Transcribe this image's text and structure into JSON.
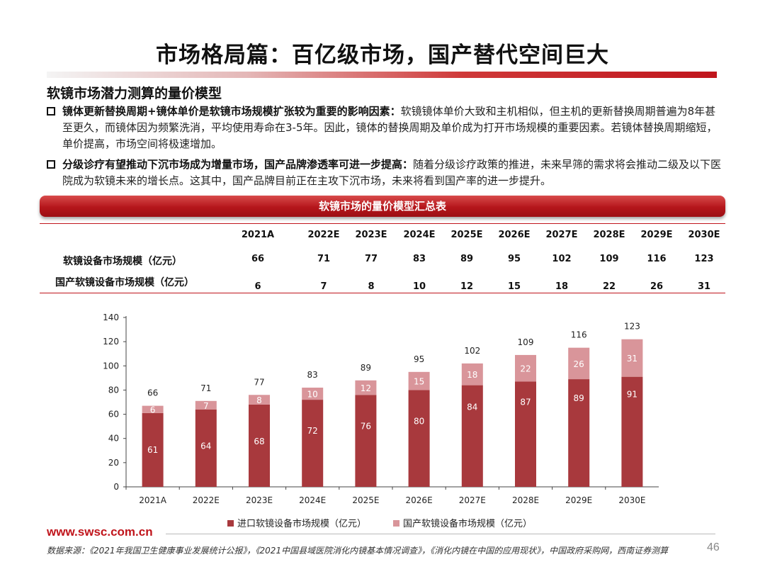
{
  "page": {
    "title": "市场格局篇：百亿级市场，国产替代空间巨大",
    "subheading": "软镜市场潜力测算的量价模型"
  },
  "bullets": [
    {
      "bold": "镜体更新替换周期+镜体单价是软镜市场规模扩张较为重要的影响因素：",
      "text": "软镜镜体单价大致和主机相似，但主机的更新替换周期普遍为8年甚至更久，而镜体因为频繁洗消，平均使用寿命在3-5年。因此，镜体的替换周期及单价成为打开市场规模的重要因素。若镜体替换周期缩短，单价提高，市场空间将极速增加。"
    },
    {
      "bold": "分级诊疗有望推动下沉市场成为增量市场，国产品牌渗透率可进一步提高：",
      "text": "随着分级诊疗政策的推进，未来早筛的需求将会推动二级及以下医院成为软镜未来的增长点。这其中，国产品牌目前正在主攻下沉市场，未来将看到国产率的进一步提升。"
    }
  ],
  "table": {
    "banner": "软镜市场的量价模型汇总表",
    "years": [
      "2021A",
      "2022E",
      "2023E",
      "2024E",
      "2025E",
      "2026E",
      "2027E",
      "2028E",
      "2029E",
      "2030E"
    ],
    "rows": [
      {
        "label": "软镜设备市场规模（亿元）",
        "values": [
          "66",
          "71",
          "77",
          "83",
          "89",
          "95",
          "102",
          "109",
          "116",
          "123"
        ]
      },
      {
        "label": "国产软镜设备市场规模（亿元）",
        "values": [
          "6",
          "7",
          "8",
          "10",
          "12",
          "15",
          "18",
          "22",
          "26",
          "31"
        ]
      }
    ]
  },
  "chart_data": {
    "type": "bar",
    "stacked": true,
    "categories": [
      "2021A",
      "2022E",
      "2023E",
      "2024E",
      "2025E",
      "2026E",
      "2027E",
      "2028E",
      "2029E",
      "2030E"
    ],
    "series": [
      {
        "name": "进口软镜设备市场规模（亿元）",
        "color": "#a8393d",
        "values": [
          61,
          64,
          68,
          72,
          76,
          80,
          84,
          87,
          89,
          91
        ]
      },
      {
        "name": "国产软镜设备市场规模（亿元）",
        "color": "#d9959a",
        "values": [
          6,
          7,
          8,
          10,
          12,
          15,
          18,
          22,
          26,
          31
        ]
      }
    ],
    "totals": [
      66,
      71,
      77,
      83,
      89,
      95,
      102,
      109,
      116,
      123
    ],
    "ylim": [
      0,
      140
    ],
    "yticks": [
      0,
      20,
      40,
      60,
      80,
      100,
      120,
      140
    ],
    "grid": false,
    "legend": "bottom"
  },
  "footer": {
    "url": "www.swsc.com.cn",
    "source": "数据来源：《2021年我国卫生健康事业发展统计公报》，《2021中国县域医院消化内镜基本情况调查》，《消化内镜在中国的应用现状》，中国政府采购网，西南证券测算",
    "page_number": "46"
  },
  "colors": {
    "accent": "#c0151c",
    "import_bar": "#a8393d",
    "domestic_bar": "#d9959a"
  }
}
